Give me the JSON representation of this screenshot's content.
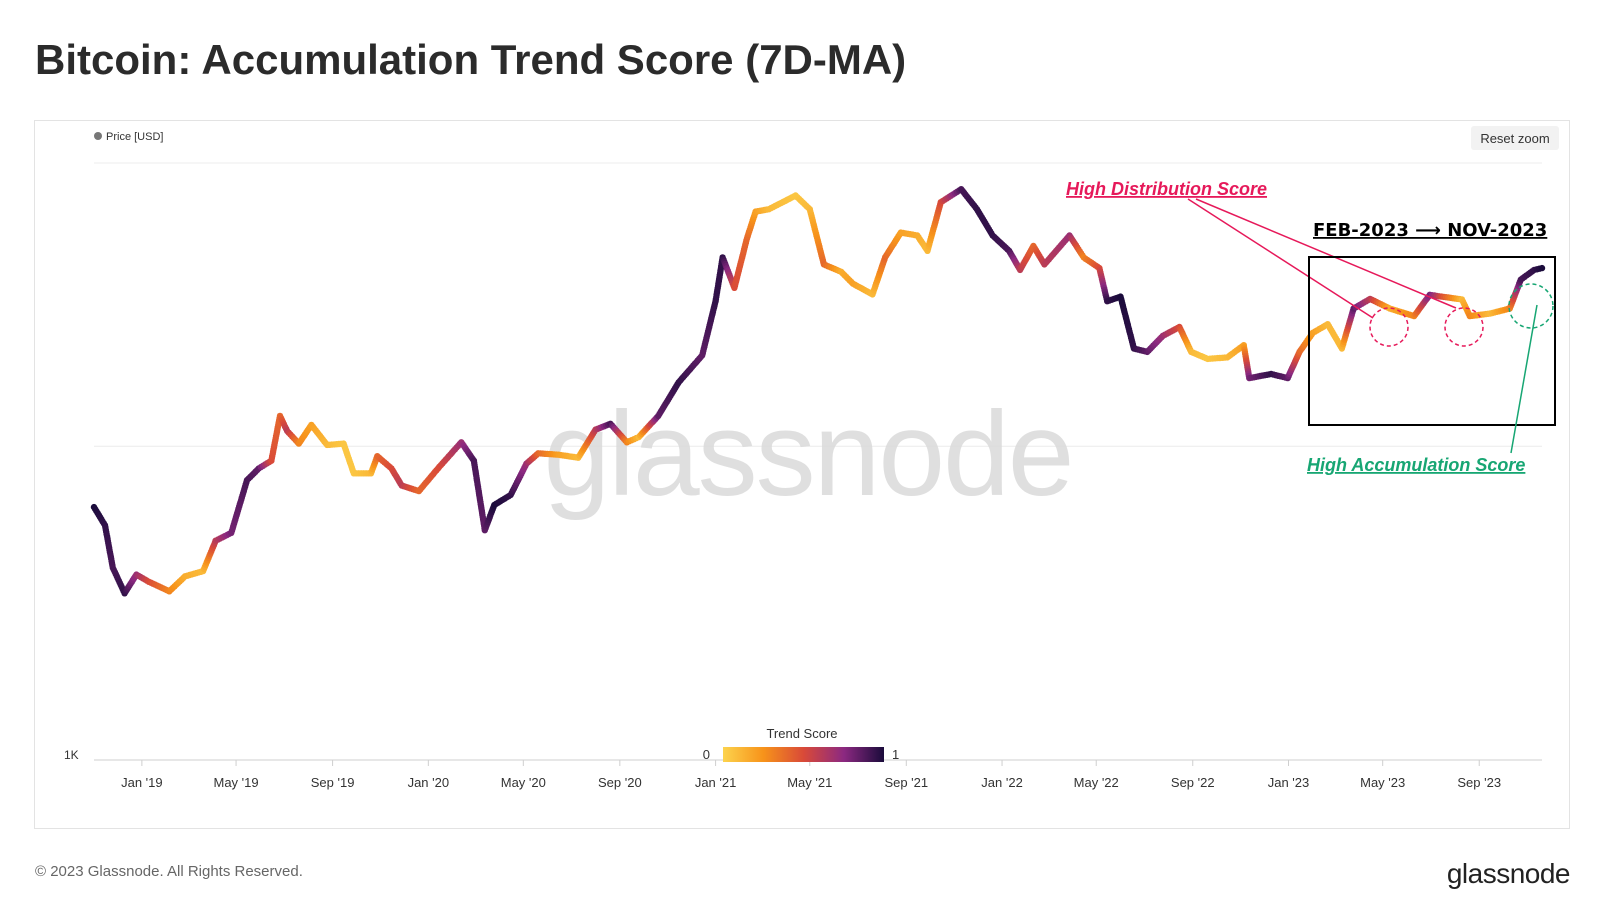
{
  "page": {
    "title": "Bitcoin: Accumulation Trend Score (7D-MA)",
    "copyright": "© 2023 Glassnode. All Rights Reserved.",
    "footer_logo": "glassnode",
    "watermark": "glassnode"
  },
  "toolbar": {
    "reset_zoom_label": "Reset zoom"
  },
  "colors": {
    "score_low": "#fcd34d",
    "score_mid_low": "#f7931a",
    "score_mid": "#d94a38",
    "score_mid_high": "#8c2981",
    "score_high": "#1a0b3b",
    "distribution_annotation": "#e6195a",
    "accumulation_annotation": "#17a673"
  },
  "annotations": {
    "distribution_label": "High Distribution Score",
    "accumulation_label": "High Accumulation Score",
    "period_label": "FEB-2023 ⟶ NOV-2023"
  },
  "chart_data": {
    "type": "scatter",
    "y_scale": "log",
    "legend": {
      "entries": [
        "Price [USD]"
      ],
      "placement": "top-left"
    },
    "color_scale": {
      "title": "Trend Score",
      "min_label": "0",
      "max_label": "1",
      "placement": "bottom-center"
    },
    "y_axis": {
      "tick_labels": [
        "1K"
      ],
      "ylim": [
        1000,
        80000
      ]
    },
    "x_axis": {
      "range": [
        "2018-11-01",
        "2023-11-20"
      ],
      "ticks": [
        {
          "date": "2019-01-01",
          "label": "Jan '19"
        },
        {
          "date": "2019-05-01",
          "label": "May '19"
        },
        {
          "date": "2019-09-01",
          "label": "Sep '19"
        },
        {
          "date": "2020-01-01",
          "label": "Jan '20"
        },
        {
          "date": "2020-05-01",
          "label": "May '20"
        },
        {
          "date": "2020-09-01",
          "label": "Sep '20"
        },
        {
          "date": "2021-01-01",
          "label": "Jan '21"
        },
        {
          "date": "2021-05-01",
          "label": "May '21"
        },
        {
          "date": "2021-09-01",
          "label": "Sep '21"
        },
        {
          "date": "2022-01-01",
          "label": "Jan '22"
        },
        {
          "date": "2022-05-01",
          "label": "May '22"
        },
        {
          "date": "2022-09-01",
          "label": "Sep '22"
        },
        {
          "date": "2023-01-01",
          "label": "Jan '23"
        },
        {
          "date": "2023-05-01",
          "label": "May '23"
        },
        {
          "date": "2023-09-01",
          "label": "Sep '23"
        }
      ]
    },
    "series": [
      {
        "name": "Price [USD]",
        "points": [
          {
            "date": "2018-11-01",
            "price": 6400,
            "score": 1.0
          },
          {
            "date": "2018-11-15",
            "price": 5600,
            "score": 0.95
          },
          {
            "date": "2018-11-25",
            "price": 4100,
            "score": 0.9
          },
          {
            "date": "2018-12-10",
            "price": 3400,
            "score": 0.95
          },
          {
            "date": "2018-12-25",
            "price": 3900,
            "score": 0.7
          },
          {
            "date": "2019-01-10",
            "price": 3700,
            "score": 0.5
          },
          {
            "date": "2019-02-05",
            "price": 3450,
            "score": 0.3
          },
          {
            "date": "2019-02-25",
            "price": 3850,
            "score": 0.15
          },
          {
            "date": "2019-03-20",
            "price": 4000,
            "score": 0.1
          },
          {
            "date": "2019-04-05",
            "price": 5000,
            "score": 0.6
          },
          {
            "date": "2019-04-25",
            "price": 5300,
            "score": 0.8
          },
          {
            "date": "2019-05-15",
            "price": 7800,
            "score": 0.9
          },
          {
            "date": "2019-05-30",
            "price": 8500,
            "score": 0.85
          },
          {
            "date": "2019-06-15",
            "price": 9000,
            "score": 0.5
          },
          {
            "date": "2019-06-26",
            "price": 12500,
            "score": 0.4
          },
          {
            "date": "2019-07-05",
            "price": 11200,
            "score": 0.6
          },
          {
            "date": "2019-07-20",
            "price": 10200,
            "score": 0.3
          },
          {
            "date": "2019-08-05",
            "price": 11700,
            "score": 0.2
          },
          {
            "date": "2019-08-25",
            "price": 10100,
            "score": 0.1
          },
          {
            "date": "2019-09-15",
            "price": 10200,
            "score": 0.05
          },
          {
            "date": "2019-09-28",
            "price": 8200,
            "score": 0.05
          },
          {
            "date": "2019-10-20",
            "price": 8200,
            "score": 0.1
          },
          {
            "date": "2019-10-28",
            "price": 9300,
            "score": 0.4
          },
          {
            "date": "2019-11-15",
            "price": 8500,
            "score": 0.5
          },
          {
            "date": "2019-11-28",
            "price": 7500,
            "score": 0.6
          },
          {
            "date": "2019-12-20",
            "price": 7200,
            "score": 0.4
          },
          {
            "date": "2020-01-15",
            "price": 8600,
            "score": 0.5
          },
          {
            "date": "2020-02-12",
            "price": 10300,
            "score": 0.7
          },
          {
            "date": "2020-02-28",
            "price": 9000,
            "score": 0.9
          },
          {
            "date": "2020-03-13",
            "price": 5400,
            "score": 0.85
          },
          {
            "date": "2020-03-25",
            "price": 6500,
            "score": 1.0
          },
          {
            "date": "2020-04-15",
            "price": 7000,
            "score": 0.95
          },
          {
            "date": "2020-05-05",
            "price": 8800,
            "score": 0.7
          },
          {
            "date": "2020-05-20",
            "price": 9500,
            "score": 0.4
          },
          {
            "date": "2020-06-15",
            "price": 9400,
            "score": 0.2
          },
          {
            "date": "2020-07-10",
            "price": 9200,
            "score": 0.1
          },
          {
            "date": "2020-08-01",
            "price": 11300,
            "score": 0.6
          },
          {
            "date": "2020-08-20",
            "price": 11800,
            "score": 0.9
          },
          {
            "date": "2020-09-10",
            "price": 10300,
            "score": 0.3
          },
          {
            "date": "2020-09-25",
            "price": 10700,
            "score": 0.1
          },
          {
            "date": "2020-10-20",
            "price": 12500,
            "score": 0.85
          },
          {
            "date": "2020-11-15",
            "price": 16000,
            "score": 0.95
          },
          {
            "date": "2020-12-15",
            "price": 19500,
            "score": 0.85
          },
          {
            "date": "2021-01-01",
            "price": 29000,
            "score": 0.95
          },
          {
            "date": "2021-01-10",
            "price": 40000,
            "score": 0.95
          },
          {
            "date": "2021-01-25",
            "price": 32000,
            "score": 0.5
          },
          {
            "date": "2021-02-10",
            "price": 46000,
            "score": 0.4
          },
          {
            "date": "2021-02-21",
            "price": 56000,
            "score": 0.2
          },
          {
            "date": "2021-03-10",
            "price": 57000,
            "score": 0.1
          },
          {
            "date": "2021-04-13",
            "price": 63000,
            "score": 0.05
          },
          {
            "date": "2021-05-01",
            "price": 57000,
            "score": 0.1
          },
          {
            "date": "2021-05-19",
            "price": 38000,
            "score": 0.4
          },
          {
            "date": "2021-06-10",
            "price": 36000,
            "score": 0.15
          },
          {
            "date": "2021-06-25",
            "price": 33000,
            "score": 0.2
          },
          {
            "date": "2021-07-20",
            "price": 30500,
            "score": 0.1
          },
          {
            "date": "2021-08-05",
            "price": 40000,
            "score": 0.4
          },
          {
            "date": "2021-08-25",
            "price": 48000,
            "score": 0.2
          },
          {
            "date": "2021-09-15",
            "price": 47000,
            "score": 0.15
          },
          {
            "date": "2021-09-28",
            "price": 42000,
            "score": 0.1
          },
          {
            "date": "2021-10-15",
            "price": 60000,
            "score": 0.5
          },
          {
            "date": "2021-11-10",
            "price": 66000,
            "score": 0.9
          },
          {
            "date": "2021-11-30",
            "price": 57000,
            "score": 0.95
          },
          {
            "date": "2021-12-20",
            "price": 47000,
            "score": 0.95
          },
          {
            "date": "2022-01-10",
            "price": 42000,
            "score": 0.9
          },
          {
            "date": "2022-01-24",
            "price": 36500,
            "score": 0.6
          },
          {
            "date": "2022-02-10",
            "price": 43500,
            "score": 0.4
          },
          {
            "date": "2022-02-24",
            "price": 38000,
            "score": 0.6
          },
          {
            "date": "2022-03-28",
            "price": 47000,
            "score": 0.7
          },
          {
            "date": "2022-04-15",
            "price": 40000,
            "score": 0.3
          },
          {
            "date": "2022-05-05",
            "price": 37000,
            "score": 0.5
          },
          {
            "date": "2022-05-15",
            "price": 29000,
            "score": 0.95
          },
          {
            "date": "2022-06-01",
            "price": 30000,
            "score": 1.0
          },
          {
            "date": "2022-06-18",
            "price": 20500,
            "score": 0.95
          },
          {
            "date": "2022-07-05",
            "price": 20000,
            "score": 0.85
          },
          {
            "date": "2022-07-25",
            "price": 22500,
            "score": 0.7
          },
          {
            "date": "2022-08-15",
            "price": 24000,
            "score": 0.5
          },
          {
            "date": "2022-08-30",
            "price": 20000,
            "score": 0.1
          },
          {
            "date": "2022-09-20",
            "price": 19000,
            "score": 0.05
          },
          {
            "date": "2022-10-15",
            "price": 19200,
            "score": 0.1
          },
          {
            "date": "2022-11-05",
            "price": 21000,
            "score": 0.2
          },
          {
            "date": "2022-11-12",
            "price": 16500,
            "score": 0.8
          },
          {
            "date": "2022-12-10",
            "price": 17000,
            "score": 0.95
          },
          {
            "date": "2022-12-31",
            "price": 16500,
            "score": 0.85
          },
          {
            "date": "2023-01-15",
            "price": 20000,
            "score": 0.4
          },
          {
            "date": "2023-02-01",
            "price": 23000,
            "score": 0.2
          },
          {
            "date": "2023-02-20",
            "price": 24500,
            "score": 0.1
          },
          {
            "date": "2023-03-10",
            "price": 20500,
            "score": 0.1
          },
          {
            "date": "2023-03-25",
            "price": 27500,
            "score": 0.85
          },
          {
            "date": "2023-04-15",
            "price": 29500,
            "score": 0.6
          },
          {
            "date": "2023-05-10",
            "price": 27500,
            "score": 0.15
          },
          {
            "date": "2023-06-10",
            "price": 26000,
            "score": 0.3
          },
          {
            "date": "2023-06-30",
            "price": 30400,
            "score": 0.8
          },
          {
            "date": "2023-07-15",
            "price": 30000,
            "score": 0.5
          },
          {
            "date": "2023-08-10",
            "price": 29400,
            "score": 0.1
          },
          {
            "date": "2023-08-20",
            "price": 26000,
            "score": 0.3
          },
          {
            "date": "2023-09-15",
            "price": 26500,
            "score": 0.1
          },
          {
            "date": "2023-10-10",
            "price": 27500,
            "score": 0.3
          },
          {
            "date": "2023-10-24",
            "price": 34000,
            "score": 0.9
          },
          {
            "date": "2023-11-10",
            "price": 36500,
            "score": 0.95
          },
          {
            "date": "2023-11-20",
            "price": 37000,
            "score": 1.0
          }
        ]
      }
    ]
  }
}
